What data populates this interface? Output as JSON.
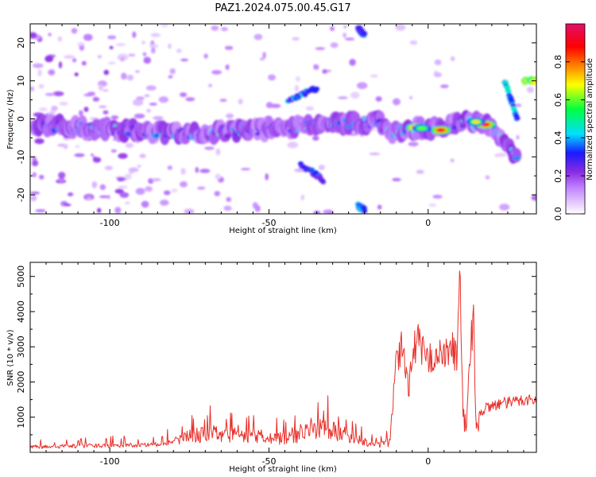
{
  "title": "PAZ1.2024.075.00.45.G17",
  "chart_data": [
    {
      "type": "heatmap",
      "xlabel": "Height of straight line (km)",
      "ylabel": "Frequency (Hz)",
      "xlim": [
        -125,
        34
      ],
      "ylim": [
        -25,
        25
      ],
      "x_ticks": [
        -100,
        -50,
        0
      ],
      "y_ticks": [
        -20,
        -10,
        0,
        10,
        20
      ],
      "colorbar": {
        "label": "Normalized spectral amplitude",
        "range": [
          0.0,
          1.0
        ],
        "ticks": [
          0.0,
          0.2,
          0.4,
          0.6,
          0.8
        ],
        "tick_labels": [
          "0.0",
          "0.2",
          "0.4",
          "0.6",
          "0.8"
        ],
        "colormap": [
          "#ffffff",
          "#e4c8ff",
          "#c080ff",
          "#8a2be2",
          "#1a1aff",
          "#00e0ff",
          "#00ff40",
          "#ffff00",
          "#ff8000",
          "#ff0000",
          "#e0106a"
        ]
      },
      "ridge": {
        "x": [
          -124,
          -115,
          -105,
          -95,
          -85,
          -75,
          -65,
          -55,
          -45,
          -35,
          -25,
          -15,
          -12,
          -8,
          -4,
          0,
          5,
          10,
          15,
          20,
          23,
          25,
          28
        ],
        "y": [
          -2,
          -2,
          -2.5,
          -3,
          -3.5,
          -4,
          -3.5,
          -3,
          -2.5,
          -1.5,
          -1,
          -1,
          -3.5,
          -3,
          -2.5,
          -2.5,
          -2.5,
          -1,
          -1,
          -2,
          -5,
          -8,
          -10
        ]
      },
      "features": [
        {
          "x": [
            -44,
            -35
          ],
          "y": [
            5,
            8
          ],
          "strength": 0.35
        },
        {
          "x": [
            -40,
            -33
          ],
          "y": [
            -12,
            -16
          ],
          "strength": 0.3
        },
        {
          "x": [
            24,
            28
          ],
          "y": [
            10,
            0
          ],
          "strength": 0.4
        },
        {
          "x": [
            30,
            34
          ],
          "y": [
            10,
            10
          ],
          "strength": 0.6
        },
        {
          "x": [
            -22,
            -20
          ],
          "y": [
            -23,
            -24
          ],
          "strength": 0.4
        },
        {
          "x": [
            -22,
            -20
          ],
          "y": [
            24,
            22
          ],
          "strength": 0.3
        }
      ],
      "peaks": [
        {
          "x": -4,
          "y": -2.3,
          "value": 0.85
        },
        {
          "x": 4,
          "y": -3,
          "value": 0.9
        },
        {
          "x": 18,
          "y": -1.5,
          "value": 0.9
        },
        {
          "x": 15,
          "y": -0.8,
          "value": 0.7
        },
        {
          "x": -2,
          "y": -2.5,
          "value": 0.6
        }
      ]
    },
    {
      "type": "line",
      "xlabel": "Height of straight line (km)",
      "ylabel": "SNR (10 * v/v)",
      "xlim": [
        -125,
        34
      ],
      "ylim": [
        0,
        5400
      ],
      "x_ticks": [
        -100,
        -50,
        0
      ],
      "y_ticks": [
        1000,
        2000,
        3000,
        4000,
        5000
      ],
      "color": "#e8302a",
      "series": [
        {
          "x": [
            -125,
            -110,
            -95,
            -85,
            -80,
            -75,
            -68,
            -60,
            -50,
            -45,
            -40,
            -35,
            -32,
            -30,
            -25,
            -20,
            -15,
            -12,
            -11,
            -10,
            -8,
            -7,
            -6,
            -5,
            -3,
            -2,
            0,
            2,
            5,
            8,
            9,
            10,
            10.5,
            11,
            12,
            13,
            14,
            15,
            17,
            20,
            25,
            30,
            34
          ],
          "y": [
            150,
            180,
            200,
            220,
            300,
            450,
            550,
            480,
            450,
            380,
            500,
            650,
            750,
            600,
            500,
            300,
            220,
            280,
            1500,
            2500,
            3100,
            2300,
            1800,
            3000,
            3100,
            2900,
            2600,
            2800,
            2700,
            3000,
            2500,
            5300,
            3000,
            1000,
            700,
            2500,
            4300,
            700,
            1200,
            1350,
            1400,
            1500,
            1500
          ]
        }
      ]
    }
  ]
}
